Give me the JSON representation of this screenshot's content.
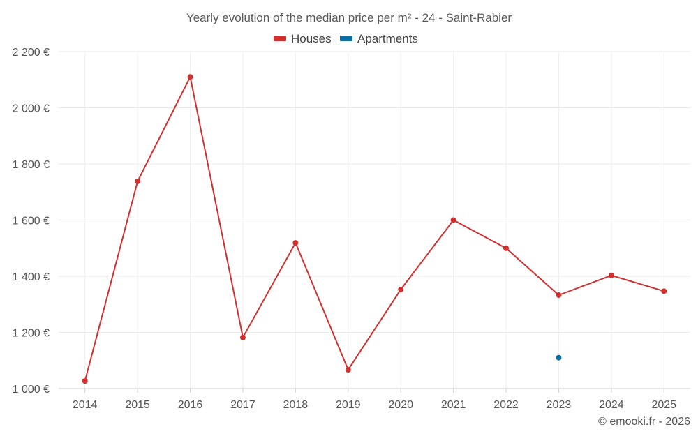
{
  "chart_data": {
    "type": "line",
    "title": "Yearly evolution of the median price per m² - 24 - Saint-Rabier",
    "xlabel": "",
    "ylabel": "",
    "categories": [
      "2014",
      "2015",
      "2016",
      "2017",
      "2018",
      "2019",
      "2020",
      "2021",
      "2022",
      "2023",
      "2024",
      "2025"
    ],
    "ylim": [
      1000,
      2200
    ],
    "yticks": [
      1000,
      1200,
      1400,
      1600,
      1800,
      2000,
      2200
    ],
    "ytick_labels": [
      "1 000 €",
      "1 200 €",
      "1 400 €",
      "1 600 €",
      "1 800 €",
      "2 000 €",
      "2 200 €"
    ],
    "grid": true,
    "legend_position": "top-center",
    "series": [
      {
        "name": "Houses",
        "color": "#d32f2f",
        "values": [
          1027,
          1738,
          2110,
          1182,
          1519,
          1067,
          1353,
          1600,
          1500,
          1333,
          1403,
          1347
        ]
      },
      {
        "name": "Apartments",
        "color": "#0b6fa4",
        "values": [
          null,
          null,
          null,
          null,
          null,
          null,
          null,
          null,
          null,
          1110,
          null,
          null
        ]
      }
    ]
  },
  "credit": "© emooki.fr - 2026"
}
